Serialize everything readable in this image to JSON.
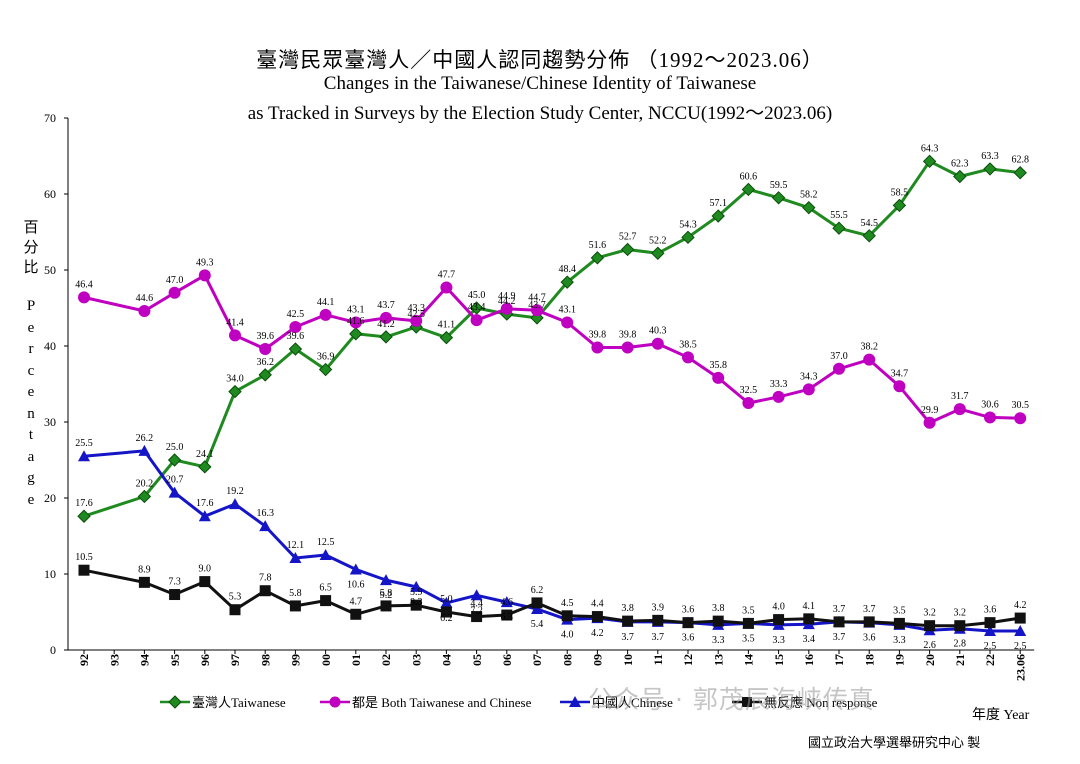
{
  "chart_data": {
    "type": "line",
    "title": "臺灣民眾臺灣人／中國人認同趨勢分佈 （1992～2023.06）",
    "subtitle_lines": [
      "Changes in the Taiwanese/Chinese Identity of Taiwanese",
      "as Tracked in Surveys by the Election Study Center, NCCU(1992～2023.06)"
    ],
    "ylabel_zh": "百分比",
    "ylabel_en": "Percentage",
    "xlabel": "年度 Year",
    "credit": "國立政治大學選舉研究中心 製",
    "ylim": [
      0,
      70
    ],
    "yticks": [
      0,
      10,
      20,
      30,
      40,
      50,
      60,
      70
    ],
    "grid": false,
    "legend_position": "bottom",
    "categories": [
      "92",
      "93",
      "94",
      "95",
      "96",
      "97",
      "98",
      "99",
      "00",
      "01",
      "02",
      "03",
      "04",
      "05",
      "06",
      "07",
      "08",
      "09",
      "10",
      "11",
      "12",
      "13",
      "14",
      "15",
      "16",
      "17",
      "18",
      "19",
      "20",
      "21",
      "22",
      "23.06"
    ],
    "series": [
      {
        "name": "臺灣人Taiwanese",
        "color": "#1f8a1f",
        "marker": "diamond",
        "values": [
          17.6,
          null,
          20.2,
          25.0,
          24.1,
          34.0,
          36.2,
          39.6,
          36.9,
          41.6,
          41.2,
          42.5,
          41.1,
          45.0,
          44.2,
          43.7,
          48.4,
          51.6,
          52.7,
          52.2,
          54.3,
          57.1,
          60.6,
          59.5,
          58.2,
          55.5,
          54.5,
          58.5,
          64.3,
          62.3,
          63.3,
          62.8
        ]
      },
      {
        "name": "都是 Both Taiwanese and Chinese",
        "color": "#c000c0",
        "marker": "circle",
        "values": [
          46.4,
          null,
          44.6,
          47.0,
          49.3,
          41.4,
          39.6,
          42.5,
          44.1,
          43.1,
          43.7,
          43.3,
          47.7,
          43.4,
          44.9,
          44.7,
          43.1,
          39.8,
          39.8,
          40.3,
          38.5,
          35.8,
          32.5,
          33.3,
          34.3,
          37.0,
          38.2,
          34.7,
          29.9,
          31.7,
          30.6,
          30.5
        ]
      },
      {
        "name": "中國人Chinese",
        "color": "#1515c8",
        "marker": "triangle",
        "values": [
          25.5,
          null,
          26.2,
          20.7,
          17.6,
          19.2,
          16.3,
          12.1,
          12.5,
          10.6,
          9.2,
          8.3,
          6.2,
          7.2,
          6.3,
          5.4,
          4.0,
          4.2,
          3.7,
          3.7,
          3.6,
          3.3,
          3.5,
          3.3,
          3.4,
          3.7,
          3.6,
          3.3,
          2.6,
          2.8,
          2.5,
          2.5
        ]
      },
      {
        "name": "無反應 Non response",
        "color": "#111111",
        "marker": "square",
        "values": [
          10.5,
          null,
          8.9,
          7.3,
          9.0,
          5.3,
          7.8,
          5.8,
          6.5,
          4.7,
          5.8,
          5.9,
          5.0,
          4.4,
          4.6,
          6.2,
          4.5,
          4.4,
          3.8,
          3.9,
          3.6,
          3.8,
          3.5,
          4.0,
          4.1,
          3.7,
          3.7,
          3.5,
          3.2,
          3.2,
          3.6,
          4.2
        ]
      }
    ]
  },
  "watermark": "公众号 · 郭茂辰海峡传真"
}
